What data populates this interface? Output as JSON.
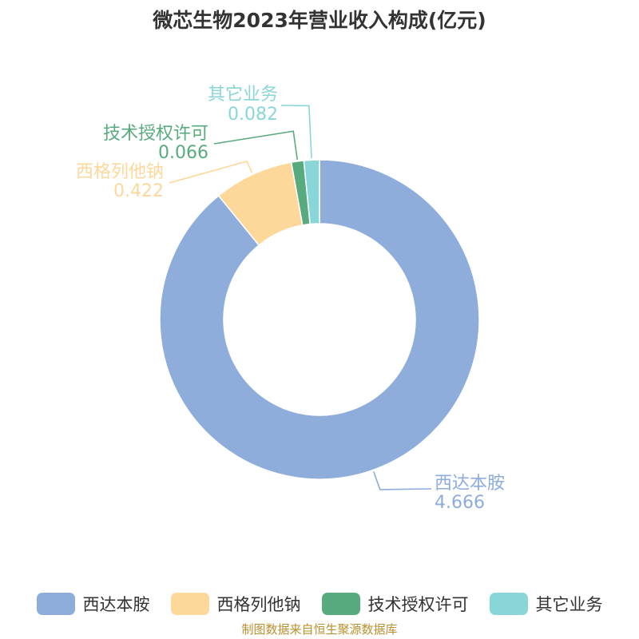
{
  "chart_data": {
    "type": "pie",
    "title": "微芯生物2023年营业收入构成(亿元)",
    "inner_radius_ratio": 0.6,
    "categories": [
      "西达本胺",
      "西格列他钠",
      "技术授权许可",
      "其它业务"
    ],
    "values": [
      4.666,
      0.422,
      0.066,
      0.082
    ],
    "value_labels": [
      "4.666",
      "0.422",
      "0.066",
      "0.082"
    ],
    "colors": [
      "#8eaddb",
      "#fdd89a",
      "#58ab7e",
      "#89d6d9"
    ],
    "legend_position": "bottom"
  },
  "footer": {
    "source": "制图数据来自恒生聚源数据库"
  }
}
